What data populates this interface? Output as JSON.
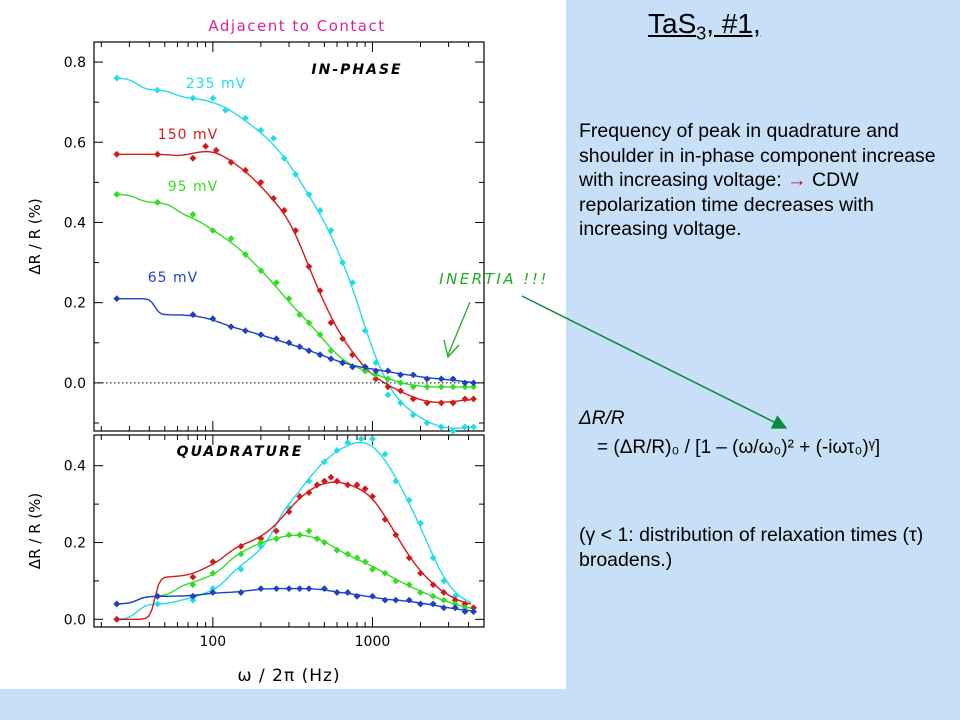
{
  "slide": {
    "title_main": "TaS",
    "title_sub": "3",
    "title_tail": ", #1,",
    "summary_part1": "Frequency of peak in quadrature and shoulder in in-phase component increase with increasing voltage:",
    "summary_arrow": "→",
    "summary_part2": "CDW repolarization time decreases with increasing voltage.",
    "formula_label": "ΔR/R",
    "formula": "= (ΔR/R)₀ / [1 – (ω/ω₀)² + (-iωτ₀)ᵞ]",
    "note": "(γ < 1: distribution of relaxation times (τ) broadens.)",
    "colors": {
      "background": "#c7dff7",
      "connector_arrow": "#0a8a3a",
      "inertia_label": "#22aa22"
    }
  },
  "chart_data": [
    {
      "type": "scatter",
      "panel": "in-phase",
      "title": "Adjacent to Contact",
      "panel_label": "IN-PHASE",
      "annotation": "INERTIA !!!",
      "ylabel": "ΔR / R (%)",
      "xscale": "log",
      "xlim": [
        18,
        5000
      ],
      "ylim": [
        -0.12,
        0.85
      ],
      "yticks": [
        "0.8",
        "0.6",
        "0.4",
        "0.2",
        "0.0"
      ],
      "zero_line": "dotted",
      "series": [
        {
          "name": "235 mV",
          "color": "#22dde6",
          "x": [
            25,
            45,
            75,
            100,
            120,
            160,
            200,
            240,
            280,
            330,
            400,
            470,
            550,
            650,
            750,
            900,
            1050,
            1250,
            1500,
            1800,
            2200,
            2700,
            3200,
            3800,
            4300
          ],
          "y": [
            0.76,
            0.73,
            0.71,
            0.71,
            0.68,
            0.66,
            0.63,
            0.61,
            0.56,
            0.52,
            0.47,
            0.43,
            0.38,
            0.3,
            0.25,
            0.13,
            0.05,
            -0.03,
            -0.05,
            -0.08,
            -0.1,
            -0.11,
            -0.12,
            -0.11,
            -0.11
          ]
        },
        {
          "name": "150 mV",
          "color": "#d31a1a",
          "x": [
            25,
            45,
            75,
            90,
            105,
            130,
            160,
            200,
            240,
            280,
            330,
            400,
            470,
            550,
            650,
            750,
            900,
            1050,
            1250,
            1500,
            1800,
            2200,
            2700,
            3200,
            3800,
            4300
          ],
          "y": [
            0.57,
            0.57,
            0.56,
            0.59,
            0.58,
            0.55,
            0.53,
            0.5,
            0.46,
            0.43,
            0.38,
            0.29,
            0.23,
            0.15,
            0.11,
            0.07,
            0.03,
            0.01,
            -0.01,
            -0.02,
            -0.04,
            -0.05,
            -0.05,
            -0.05,
            -0.04,
            -0.04
          ]
        },
        {
          "name": "95 mV",
          "color": "#33dd22",
          "x": [
            25,
            45,
            75,
            100,
            130,
            160,
            200,
            250,
            300,
            350,
            400,
            470,
            550,
            650,
            750,
            900,
            1050,
            1250,
            1500,
            1800,
            2200,
            2700,
            3200,
            3800,
            4300
          ],
          "y": [
            0.47,
            0.45,
            0.42,
            0.38,
            0.36,
            0.32,
            0.28,
            0.25,
            0.21,
            0.17,
            0.15,
            0.12,
            0.08,
            0.05,
            0.04,
            0.03,
            0.02,
            0.01,
            0.0,
            -0.01,
            -0.01,
            -0.01,
            -0.01,
            -0.01,
            -0.01
          ]
        },
        {
          "name": "65 mV",
          "color": "#1f3fc8",
          "x": [
            25,
            75,
            100,
            130,
            160,
            200,
            250,
            300,
            350,
            400,
            470,
            550,
            650,
            750,
            900,
            1050,
            1250,
            1500,
            1800,
            2200,
            2700,
            3200,
            3800,
            4300
          ],
          "y": [
            0.21,
            0.17,
            0.16,
            0.14,
            0.13,
            0.12,
            0.11,
            0.1,
            0.09,
            0.08,
            0.07,
            0.06,
            0.05,
            0.04,
            0.04,
            0.03,
            0.03,
            0.02,
            0.02,
            0.01,
            0.01,
            0.01,
            0.0,
            0.0
          ]
        }
      ]
    },
    {
      "type": "scatter",
      "panel": "quadrature",
      "panel_label": "QUADRATURE",
      "ylabel": "ΔR / R (%)",
      "xlabel": "ω / 2π (Hz)",
      "xscale": "log",
      "xlim": [
        18,
        5000
      ],
      "ylim": [
        -0.02,
        0.48
      ],
      "xticks": [
        "100",
        "1000"
      ],
      "yticks": [
        "0.4",
        "0.2",
        "0.0"
      ],
      "series": [
        {
          "name": "235 mV",
          "color": "#22dde6",
          "x": [
            25,
            45,
            75,
            100,
            150,
            200,
            300,
            400,
            500,
            600,
            700,
            850,
            1000,
            1200,
            1400,
            1700,
            2000,
            2400,
            2800,
            3300,
            3800,
            4300
          ],
          "y": [
            0.0,
            0.04,
            0.05,
            0.08,
            0.13,
            0.19,
            0.29,
            0.36,
            0.41,
            0.44,
            0.46,
            0.47,
            0.47,
            0.43,
            0.36,
            0.31,
            0.25,
            0.16,
            0.1,
            0.06,
            0.04,
            0.03
          ]
        },
        {
          "name": "150 mV",
          "color": "#d31a1a",
          "x": [
            25,
            75,
            100,
            150,
            200,
            250,
            300,
            350,
            400,
            450,
            500,
            550,
            600,
            700,
            800,
            900,
            1000,
            1200,
            1400,
            1700,
            2000,
            2400,
            2800,
            3300,
            3800,
            4300
          ],
          "y": [
            0.0,
            0.11,
            0.15,
            0.19,
            0.21,
            0.23,
            0.28,
            0.32,
            0.33,
            0.35,
            0.36,
            0.37,
            0.36,
            0.35,
            0.35,
            0.34,
            0.32,
            0.26,
            0.22,
            0.16,
            0.12,
            0.09,
            0.07,
            0.05,
            0.04,
            0.03
          ]
        },
        {
          "name": "95 mV",
          "color": "#33dd22",
          "x": [
            25,
            45,
            75,
            100,
            150,
            200,
            250,
            300,
            350,
            400,
            450,
            500,
            600,
            700,
            800,
            900,
            1000,
            1200,
            1400,
            1700,
            2000,
            2400,
            2800,
            3300,
            3800,
            4300
          ],
          "y": [
            0.04,
            0.06,
            0.09,
            0.12,
            0.17,
            0.2,
            0.21,
            0.22,
            0.22,
            0.23,
            0.21,
            0.2,
            0.18,
            0.17,
            0.16,
            0.15,
            0.13,
            0.12,
            0.1,
            0.09,
            0.07,
            0.06,
            0.05,
            0.04,
            0.03,
            0.02
          ]
        },
        {
          "name": "65 mV",
          "color": "#1f3fc8",
          "x": [
            25,
            45,
            75,
            100,
            150,
            200,
            250,
            300,
            350,
            400,
            500,
            600,
            700,
            800,
            1000,
            1200,
            1400,
            1700,
            2000,
            2400,
            2800,
            3300,
            3800,
            4300
          ],
          "y": [
            0.04,
            0.06,
            0.06,
            0.07,
            0.07,
            0.08,
            0.08,
            0.08,
            0.08,
            0.08,
            0.08,
            0.07,
            0.07,
            0.06,
            0.06,
            0.05,
            0.05,
            0.05,
            0.04,
            0.04,
            0.03,
            0.03,
            0.02,
            0.02
          ]
        }
      ]
    }
  ]
}
